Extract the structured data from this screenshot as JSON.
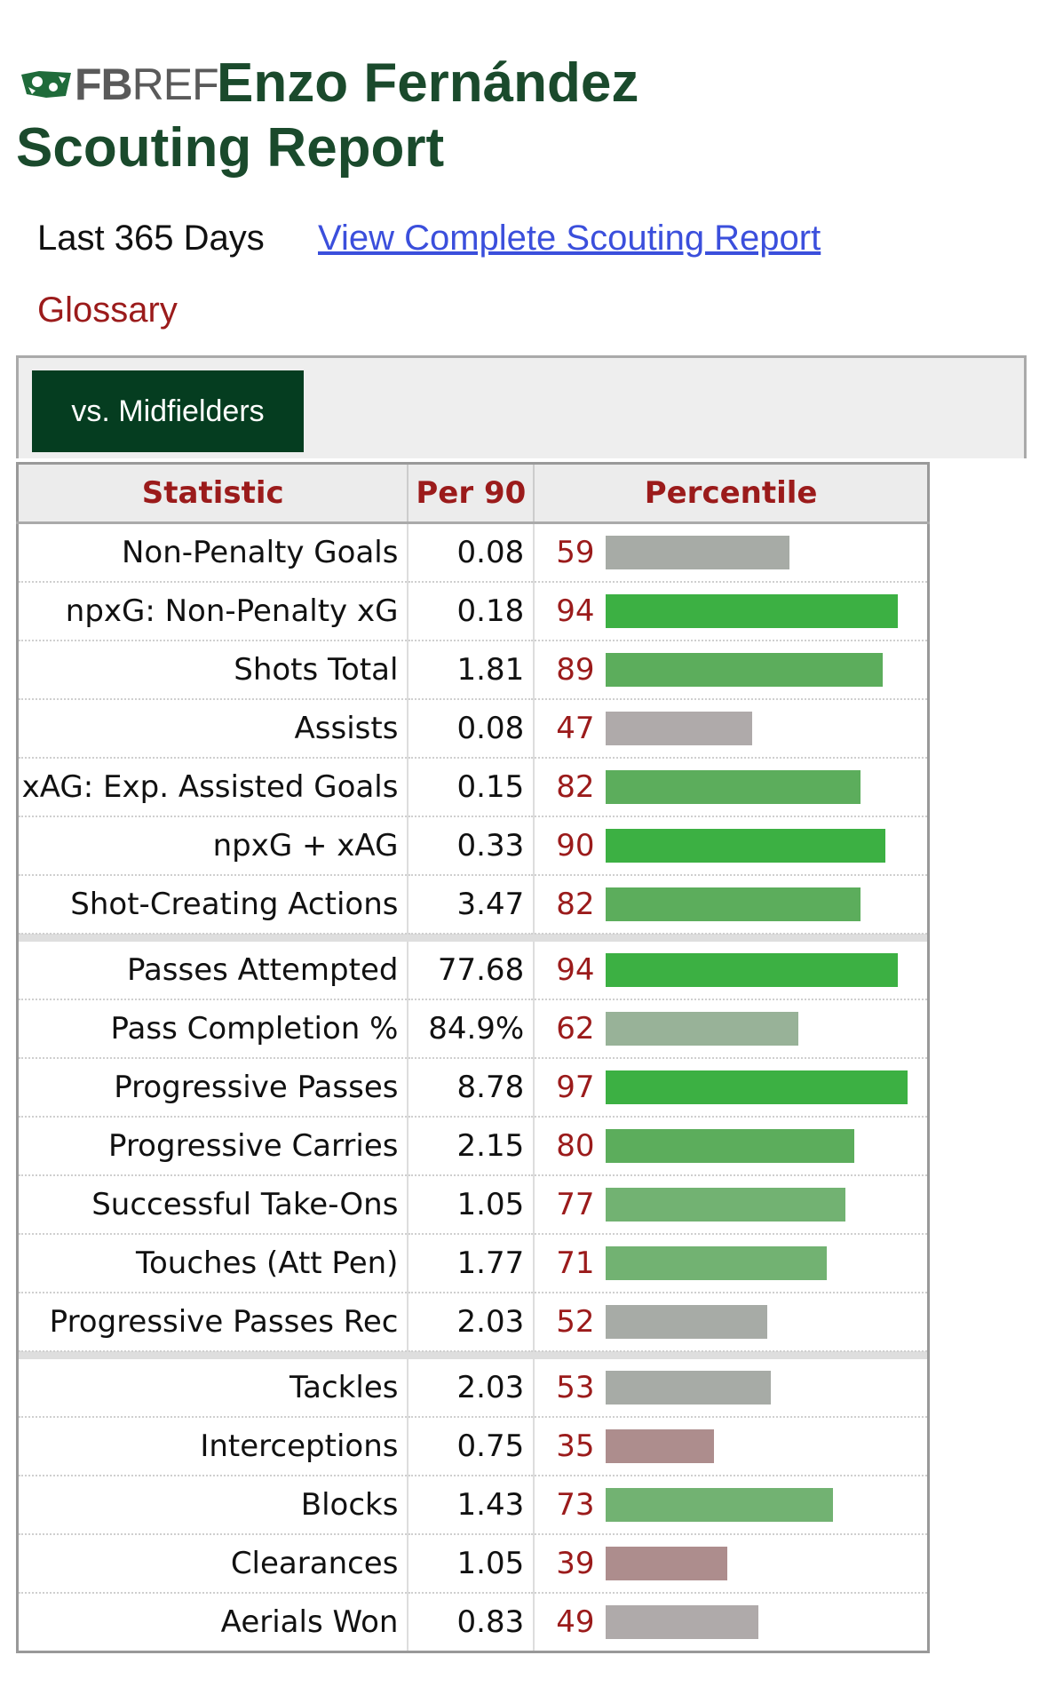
{
  "logo": {
    "fb": "FB",
    "ref": "REF",
    "icon": "fbref-logo-icon"
  },
  "title_line1": "Enzo Fernández",
  "title_line2": "Scouting Report",
  "period": "Last 365 Days",
  "complete_link": "View Complete Scouting Report",
  "glossary": "Glossary",
  "tab_label": "vs. Midfielders",
  "headers": {
    "statistic": "Statistic",
    "per90": "Per 90",
    "percentile": "Percentile"
  },
  "colors": {
    "title": "#1a4a2c",
    "accent_red": "#9b1b1b",
    "link": "#3b4fdc",
    "tab_bg": "#053d20"
  },
  "groups": [
    [
      {
        "stat": "Non-Penalty Goals",
        "per90": "0.08",
        "pct": 59
      },
      {
        "stat": "npxG: Non-Penalty xG",
        "per90": "0.18",
        "pct": 94
      },
      {
        "stat": "Shots Total",
        "per90": "1.81",
        "pct": 89
      },
      {
        "stat": "Assists",
        "per90": "0.08",
        "pct": 47
      },
      {
        "stat": "xAG: Exp. Assisted Goals",
        "per90": "0.15",
        "pct": 82
      },
      {
        "stat": "npxG + xAG",
        "per90": "0.33",
        "pct": 90
      },
      {
        "stat": "Shot-Creating Actions",
        "per90": "3.47",
        "pct": 82
      }
    ],
    [
      {
        "stat": "Passes Attempted",
        "per90": "77.68",
        "pct": 94
      },
      {
        "stat": "Pass Completion %",
        "per90": "84.9%",
        "pct": 62
      },
      {
        "stat": "Progressive Passes",
        "per90": "8.78",
        "pct": 97
      },
      {
        "stat": "Progressive Carries",
        "per90": "2.15",
        "pct": 80
      },
      {
        "stat": "Successful Take-Ons",
        "per90": "1.05",
        "pct": 77
      },
      {
        "stat": "Touches (Att Pen)",
        "per90": "1.77",
        "pct": 71
      },
      {
        "stat": "Progressive Passes Rec",
        "per90": "2.03",
        "pct": 52
      }
    ],
    [
      {
        "stat": "Tackles",
        "per90": "2.03",
        "pct": 53
      },
      {
        "stat": "Interceptions",
        "per90": "0.75",
        "pct": 35
      },
      {
        "stat": "Blocks",
        "per90": "1.43",
        "pct": 73
      },
      {
        "stat": "Clearances",
        "per90": "1.05",
        "pct": 39
      },
      {
        "stat": "Aerials Won",
        "per90": "0.83",
        "pct": 49
      }
    ]
  ]
}
